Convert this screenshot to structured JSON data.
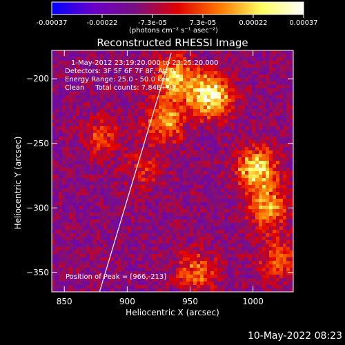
{
  "chart_data": {
    "type": "heatmap",
    "title": "Reconstructed RHESSI Image",
    "xlabel": "Heliocentric X (arcsec)",
    "ylabel": "Heliocentric Y (arcsec)",
    "xlim": [
      840,
      1032
    ],
    "ylim": [
      -365,
      -178
    ],
    "x_ticks": [
      850,
      900,
      950,
      1000
    ],
    "y_ticks": [
      -200,
      -250,
      -300,
      -350
    ],
    "colorbar": {
      "min": -0.00037,
      "max": 0.00037,
      "ticks": [
        "-0.00037",
        "-0.00022",
        "-7.3e-05",
        "7.3e-05",
        "0.00022",
        "0.00037"
      ],
      "unit_label": "(photons cm⁻² s⁻¹ asec⁻²)",
      "colormap": [
        "#0000ff",
        "#6a00c8",
        "#7a1080",
        "#e00000",
        "#ff7800",
        "#ffff60",
        "#ffffff"
      ]
    },
    "info_lines": [
      "1-May-2012 23:19:20.000 to 23:25:20.000",
      "Detectors: 3F 5F 6F 7F 8F, Att 0",
      "Energy Range: 25.0 - 50.0 keV",
      "Clean     Total counts: 7.84E+03"
    ],
    "peak_label": "Position of Peak = [966,-213]",
    "limb_line": [
      [
        878,
        -365
      ],
      [
        935,
        -180
      ]
    ],
    "hot_regions": [
      {
        "x": 966,
        "y": -213,
        "value": 1.0
      },
      {
        "x": 938,
        "y": -200,
        "value": 0.7
      },
      {
        "x": 1003,
        "y": -270,
        "value": 0.8
      },
      {
        "x": 1012,
        "y": -300,
        "value": 0.6
      },
      {
        "x": 1020,
        "y": -340,
        "value": 0.45
      },
      {
        "x": 930,
        "y": -232,
        "value": 0.55
      },
      {
        "x": 955,
        "y": -350,
        "value": 0.45
      },
      {
        "x": 880,
        "y": -245,
        "value": 0.35
      },
      {
        "x": 915,
        "y": -270,
        "value": 0.3
      }
    ]
  },
  "timestamp": "10-May-2022 08:23"
}
